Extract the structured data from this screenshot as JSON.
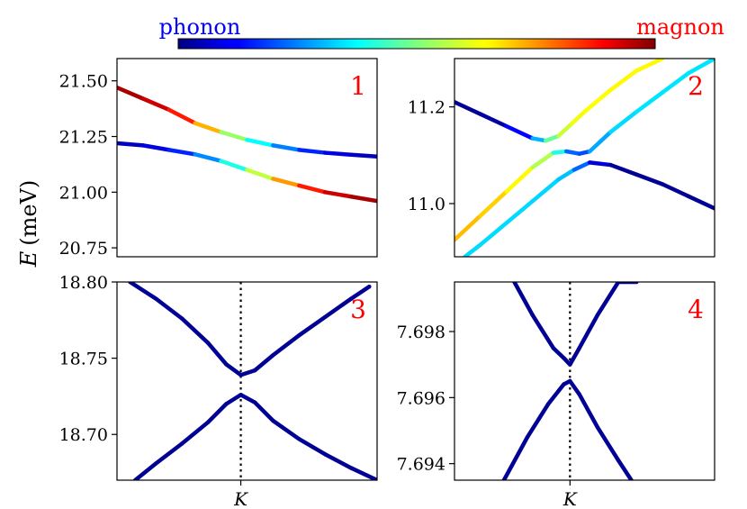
{
  "colorbar": {
    "left_label": "phonon",
    "right_label": "magnon",
    "left_color": "#0000ff",
    "right_color": "#ff0000",
    "colormap": "jet"
  },
  "figure": {
    "ylabel_var": "E",
    "ylabel_unit": "(meV)"
  },
  "chart_data": [
    {
      "type": "line",
      "panel_label": "1",
      "ylim": [
        20.71,
        21.6
      ],
      "xlim": [
        0,
        1
      ],
      "yticks": [
        "20.75",
        "21.00",
        "21.25",
        "21.50"
      ],
      "ytick_values": [
        20.75,
        21.0,
        21.25,
        21.5
      ],
      "xticks": [],
      "series": [
        {
          "x": [
            0,
            0.1,
            0.2,
            0.3,
            0.4,
            0.5,
            0.6,
            0.7,
            0.8,
            0.9,
            1.0
          ],
          "y": [
            21.47,
            21.42,
            21.37,
            21.31,
            21.27,
            21.235,
            21.21,
            21.19,
            21.177,
            21.168,
            21.16
          ],
          "magnon_weight": [
            0.97,
            0.95,
            0.9,
            0.8,
            0.6,
            0.45,
            0.3,
            0.2,
            0.12,
            0.07,
            0.05
          ]
        },
        {
          "x": [
            0,
            0.1,
            0.2,
            0.3,
            0.4,
            0.5,
            0.6,
            0.7,
            0.8,
            0.9,
            1.0
          ],
          "y": [
            21.22,
            21.21,
            21.19,
            21.17,
            21.14,
            21.1,
            21.06,
            21.03,
            21.0,
            20.98,
            20.96
          ],
          "magnon_weight": [
            0.05,
            0.07,
            0.12,
            0.2,
            0.32,
            0.48,
            0.65,
            0.8,
            0.9,
            0.95,
            0.97
          ]
        }
      ]
    },
    {
      "type": "line",
      "panel_label": "2",
      "ylim": [
        10.89,
        11.3
      ],
      "xlim": [
        0,
        1
      ],
      "yticks": [
        "11.0",
        "11.2"
      ],
      "ytick_values": [
        11.0,
        11.2
      ],
      "xticks": [],
      "series": [
        {
          "x": [
            0,
            0.1,
            0.2,
            0.3,
            0.35,
            0.4,
            0.45,
            0.5,
            0.6,
            0.7,
            0.8
          ],
          "y": [
            11.21,
            11.185,
            11.16,
            11.135,
            11.13,
            11.14,
            11.165,
            11.19,
            11.235,
            11.275,
            11.3
          ],
          "magnon_weight": [
            0.02,
            0.02,
            0.05,
            0.2,
            0.4,
            0.55,
            0.6,
            0.62,
            0.63,
            0.63,
            0.63
          ]
        },
        {
          "x": [
            0,
            0.1,
            0.2,
            0.3,
            0.38,
            0.43,
            0.48,
            0.52,
            0.6,
            0.7,
            0.8,
            0.9,
            1.0
          ],
          "y": [
            10.925,
            10.975,
            11.025,
            11.075,
            11.105,
            11.108,
            11.103,
            11.108,
            11.148,
            11.19,
            11.23,
            11.27,
            11.3
          ],
          "magnon_weight": [
            0.7,
            0.68,
            0.66,
            0.6,
            0.5,
            0.3,
            0.15,
            0.25,
            0.33,
            0.35,
            0.35,
            0.35,
            0.35
          ]
        },
        {
          "x": [
            0.04,
            0.1,
            0.2,
            0.3,
            0.4,
            0.46,
            0.52,
            0.6,
            0.7,
            0.8,
            0.9,
            1.0
          ],
          "y": [
            10.89,
            10.915,
            10.96,
            11.005,
            11.05,
            11.07,
            11.085,
            11.08,
            11.06,
            11.04,
            11.015,
            10.99
          ],
          "magnon_weight": [
            0.34,
            0.34,
            0.34,
            0.34,
            0.33,
            0.3,
            0.15,
            0.03,
            0.02,
            0.02,
            0.02,
            0.02
          ]
        }
      ]
    },
    {
      "type": "line",
      "panel_label": "3",
      "ylim": [
        18.67,
        18.8
      ],
      "xlim": [
        0,
        1
      ],
      "yticks": [
        "18.70",
        "18.75",
        "18.80"
      ],
      "ytick_values": [
        18.7,
        18.75,
        18.8
      ],
      "xticks": [
        "K"
      ],
      "xtick_values": [
        0.476
      ],
      "vline_x": 0.476,
      "series": [
        {
          "x": [
            0.05,
            0.15,
            0.25,
            0.35,
            0.42,
            0.476,
            0.53,
            0.6,
            0.7,
            0.8,
            0.9,
            0.97
          ],
          "y": [
            18.8,
            18.789,
            18.776,
            18.76,
            18.746,
            18.739,
            18.742,
            18.752,
            18.765,
            18.777,
            18.789,
            18.797
          ],
          "magnon_weight": [
            0.02,
            0.02,
            0.02,
            0.02,
            0.02,
            0.02,
            0.02,
            0.02,
            0.02,
            0.02,
            0.02,
            0.02
          ]
        },
        {
          "x": [
            0.07,
            0.15,
            0.25,
            0.35,
            0.42,
            0.476,
            0.53,
            0.6,
            0.7,
            0.8,
            0.9,
            1.0
          ],
          "y": [
            18.67,
            18.681,
            18.694,
            18.708,
            18.72,
            18.726,
            18.721,
            18.709,
            18.697,
            18.687,
            18.678,
            18.67
          ],
          "magnon_weight": [
            0.02,
            0.02,
            0.02,
            0.02,
            0.02,
            0.02,
            0.02,
            0.02,
            0.02,
            0.02,
            0.02,
            0.02
          ]
        }
      ]
    },
    {
      "type": "line",
      "panel_label": "4",
      "ylim": [
        7.6935,
        7.6995
      ],
      "xlim": [
        0,
        1
      ],
      "yticks": [
        "7.694",
        "7.696",
        "7.698"
      ],
      "ytick_values": [
        7.694,
        7.696,
        7.698
      ],
      "xticks": [
        "K"
      ],
      "xtick_values": [
        0.444
      ],
      "vline_x": 0.444,
      "series": [
        {
          "x": [
            0.23,
            0.3,
            0.38,
            0.42,
            0.444,
            0.48,
            0.55,
            0.63,
            0.7
          ],
          "y": [
            7.6995,
            7.6985,
            7.6975,
            7.6972,
            7.697,
            7.6975,
            7.6985,
            7.6995,
            7.6995
          ],
          "magnon_weight": [
            0.02,
            0.02,
            0.02,
            0.02,
            0.02,
            0.02,
            0.02,
            0.02,
            0.02
          ]
        },
        {
          "x": [
            0.19,
            0.28,
            0.36,
            0.42,
            0.444,
            0.48,
            0.55,
            0.63,
            0.68
          ],
          "y": [
            7.6935,
            7.6948,
            7.6958,
            7.6964,
            7.6965,
            7.6961,
            7.6951,
            7.6941,
            7.6935
          ],
          "magnon_weight": [
            0.02,
            0.02,
            0.02,
            0.02,
            0.02,
            0.02,
            0.02,
            0.02,
            0.02
          ]
        }
      ]
    }
  ]
}
